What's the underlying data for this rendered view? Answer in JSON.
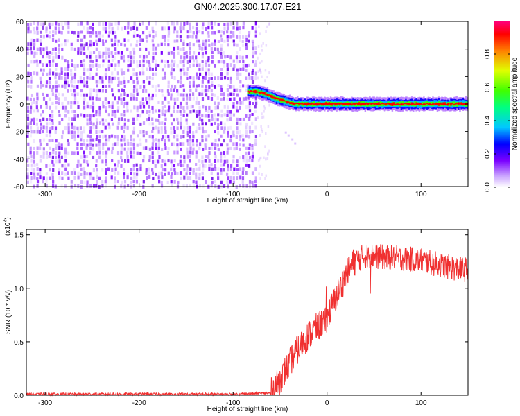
{
  "title": "GN04.2025.300.17.07.E21",
  "chart_data": [
    {
      "type": "heatmap",
      "xlabel": "Height of straight line (km)",
      "ylabel": "Frequency (Hz)",
      "xlim": [
        -320,
        150
      ],
      "ylim": [
        -60,
        60
      ],
      "xticks": [
        -300,
        -200,
        -100,
        0,
        100
      ],
      "yticks": [
        -60,
        -40,
        -20,
        0,
        20,
        40,
        60
      ],
      "description_values": {
        "noise_region_x": [
          -320,
          -75
        ],
        "signal_track": {
          "x": [
            -85,
            -75,
            -65,
            -55,
            -45,
            -35,
            -25,
            -15,
            0,
            20,
            50,
            100,
            150
          ],
          "y": [
            9,
            9,
            7,
            4,
            2,
            0,
            0,
            0,
            0,
            0,
            0,
            0,
            0
          ]
        }
      },
      "colorbar": {
        "label": "Normalized spectral amplitude",
        "range": [
          0,
          1
        ],
        "ticks": [
          0.0,
          0.2,
          0.4,
          0.6,
          0.8
        ]
      }
    },
    {
      "type": "line",
      "xlabel": "Height of straight line (km)",
      "ylabel": "SNR (10 * v/v)",
      "scale_note": "(x10",
      "scale_exp": "4",
      "scale_close": ")",
      "xlim": [
        -320,
        150
      ],
      "ylim": [
        0,
        1.55
      ],
      "xticks": [
        -300,
        -200,
        -100,
        0,
        100
      ],
      "yticks": [
        0.0,
        0.5,
        1.0,
        1.5
      ],
      "color": "#f03030",
      "envelope": {
        "x": [
          -320,
          -200,
          -100,
          -60,
          -55,
          -50,
          -45,
          -40,
          -35,
          -30,
          -25,
          -20,
          -15,
          -10,
          -5,
          0,
          5,
          10,
          15,
          20,
          25,
          30,
          40,
          50,
          60,
          80,
          100,
          120,
          140,
          150
        ],
        "y": [
          0.01,
          0.01,
          0.01,
          0.02,
          0.08,
          0.14,
          0.22,
          0.3,
          0.38,
          0.44,
          0.5,
          0.56,
          0.6,
          0.64,
          0.68,
          0.73,
          0.82,
          0.92,
          1.02,
          1.12,
          1.2,
          1.26,
          1.3,
          1.3,
          1.29,
          1.28,
          1.26,
          1.22,
          1.18,
          1.17
        ]
      }
    }
  ]
}
